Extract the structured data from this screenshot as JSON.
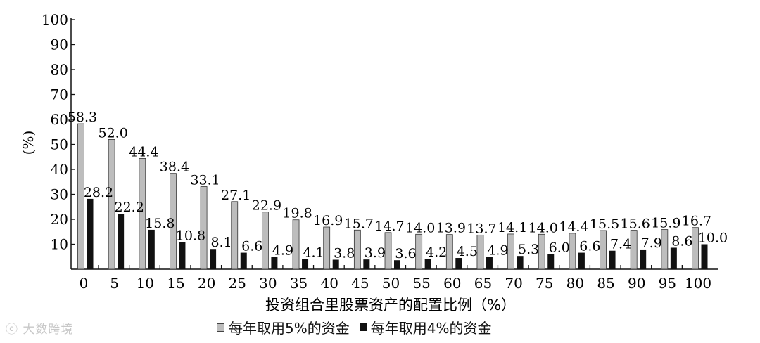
{
  "chart_data": {
    "type": "bar",
    "title": "",
    "xlabel": "投资组合里股票资产的配置比例（%）",
    "ylabel": "(%)",
    "ylim": [
      0,
      100
    ],
    "yticks": [
      10,
      20,
      30,
      40,
      50,
      60,
      70,
      80,
      90,
      100
    ],
    "categories": [
      "0",
      "5",
      "10",
      "15",
      "20",
      "25",
      "30",
      "35",
      "40",
      "45",
      "50",
      "55",
      "60",
      "65",
      "70",
      "75",
      "80",
      "85",
      "90",
      "95",
      "100"
    ],
    "series": [
      {
        "name": "每年取用5%的资金",
        "color": "#bdbdbd",
        "values": [
          58.3,
          52.0,
          44.4,
          38.4,
          33.1,
          27.1,
          22.9,
          19.8,
          16.9,
          15.7,
          14.7,
          14.0,
          13.9,
          13.7,
          14.1,
          14.0,
          14.4,
          15.5,
          15.6,
          15.9,
          16.7
        ]
      },
      {
        "name": "每年取用4%的资金",
        "color": "#111111",
        "values": [
          28.2,
          22.2,
          15.8,
          10.8,
          8.1,
          6.6,
          4.9,
          4.1,
          3.8,
          3.9,
          3.6,
          4.2,
          4.5,
          4.9,
          5.3,
          6.0,
          6.6,
          7.4,
          7.9,
          8.6,
          10.0
        ]
      }
    ],
    "value_labels": [
      [
        "58.3",
        "52.0",
        "44.4",
        "38.4",
        "33.1",
        "27.1",
        "22.9",
        "19.8",
        "16.9",
        "15.7",
        "14.7",
        "14.0",
        "13.9",
        "13.7",
        "14.1",
        "14.0",
        "14.4",
        "15.5",
        "15.6",
        "15.9",
        "16.7"
      ],
      [
        "28.2",
        "22.2",
        "15.8",
        "10.8",
        "8.1",
        "6.6",
        "4.9",
        "4.1",
        "3.8",
        "3.9",
        "3.6",
        "4.2",
        "4.5",
        "4.9",
        "5.3",
        "6.0",
        "6.6",
        "7.4",
        "7.9",
        "8.6",
        "10.0"
      ]
    ],
    "grid": false,
    "legend_position": "bottom"
  },
  "watermark": "大数跨境"
}
